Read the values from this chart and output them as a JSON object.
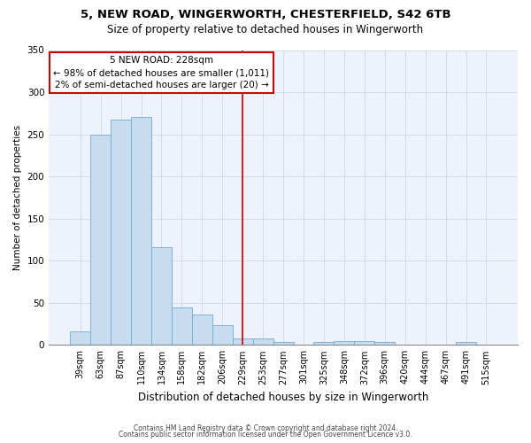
{
  "title1": "5, NEW ROAD, WINGERWORTH, CHESTERFIELD, S42 6TB",
  "title2": "Size of property relative to detached houses in Wingerworth",
  "xlabel": "Distribution of detached houses by size in Wingerworth",
  "ylabel": "Number of detached properties",
  "categories": [
    "39sqm",
    "63sqm",
    "87sqm",
    "110sqm",
    "134sqm",
    "158sqm",
    "182sqm",
    "206sqm",
    "229sqm",
    "253sqm",
    "277sqm",
    "301sqm",
    "325sqm",
    "348sqm",
    "372sqm",
    "396sqm",
    "420sqm",
    "444sqm",
    "467sqm",
    "491sqm",
    "515sqm"
  ],
  "values": [
    16,
    250,
    267,
    271,
    116,
    45,
    36,
    23,
    8,
    8,
    3,
    0,
    4,
    5,
    5,
    3,
    0,
    0,
    0,
    3,
    0
  ],
  "bar_color": "#c8dcf0",
  "bar_edge_color": "#6aafd6",
  "annotation_line1": "5 NEW ROAD: 228sqm",
  "annotation_line2": "← 98% of detached houses are smaller (1,011)",
  "annotation_line3": "2% of semi-detached houses are larger (20) →",
  "annotation_box_color": "#cc0000",
  "red_line_index": 8,
  "ylim": [
    0,
    350
  ],
  "yticks": [
    0,
    50,
    100,
    150,
    200,
    250,
    300,
    350
  ],
  "footnote1": "Contains HM Land Registry data © Crown copyright and database right 2024.",
  "footnote2": "Contains public sector information licensed under the Open Government Licence v3.0.",
  "bg_color": "#eef2fc",
  "grid_color": "#d0d8e8",
  "title1_fontsize": 9.5,
  "title2_fontsize": 8.5,
  "xlabel_fontsize": 8.5,
  "ylabel_fontsize": 7.5,
  "tick_fontsize": 7,
  "annot_fontsize": 7.5,
  "footnote_fontsize": 5.5
}
